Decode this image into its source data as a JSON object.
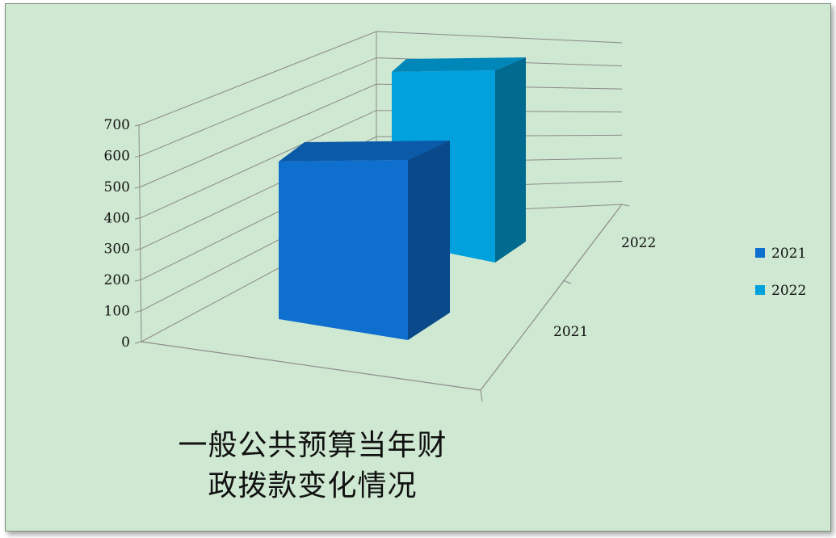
{
  "chart_data": {
    "type": "bar",
    "variant": "3d-column",
    "title_lines": [
      "一般公共预算当年财",
      "政拨款变化情况"
    ],
    "categories": [
      "2021",
      "2022"
    ],
    "series": [
      {
        "name": "2021",
        "category": "2021",
        "value": 520,
        "color": "#0f6fcf",
        "top_color": "#0b5aa8",
        "side_color": "#0a4a8a"
      },
      {
        "name": "2022",
        "category": "2022",
        "value": 560,
        "color": "#00a1dd",
        "top_color": "#0087ba",
        "side_color": "#006b8f"
      }
    ],
    "y_ticks": [
      "0",
      "100",
      "200",
      "300",
      "400",
      "500",
      "600",
      "700"
    ],
    "ylim": [
      0,
      700
    ],
    "grid": true,
    "legend_position": "right"
  }
}
